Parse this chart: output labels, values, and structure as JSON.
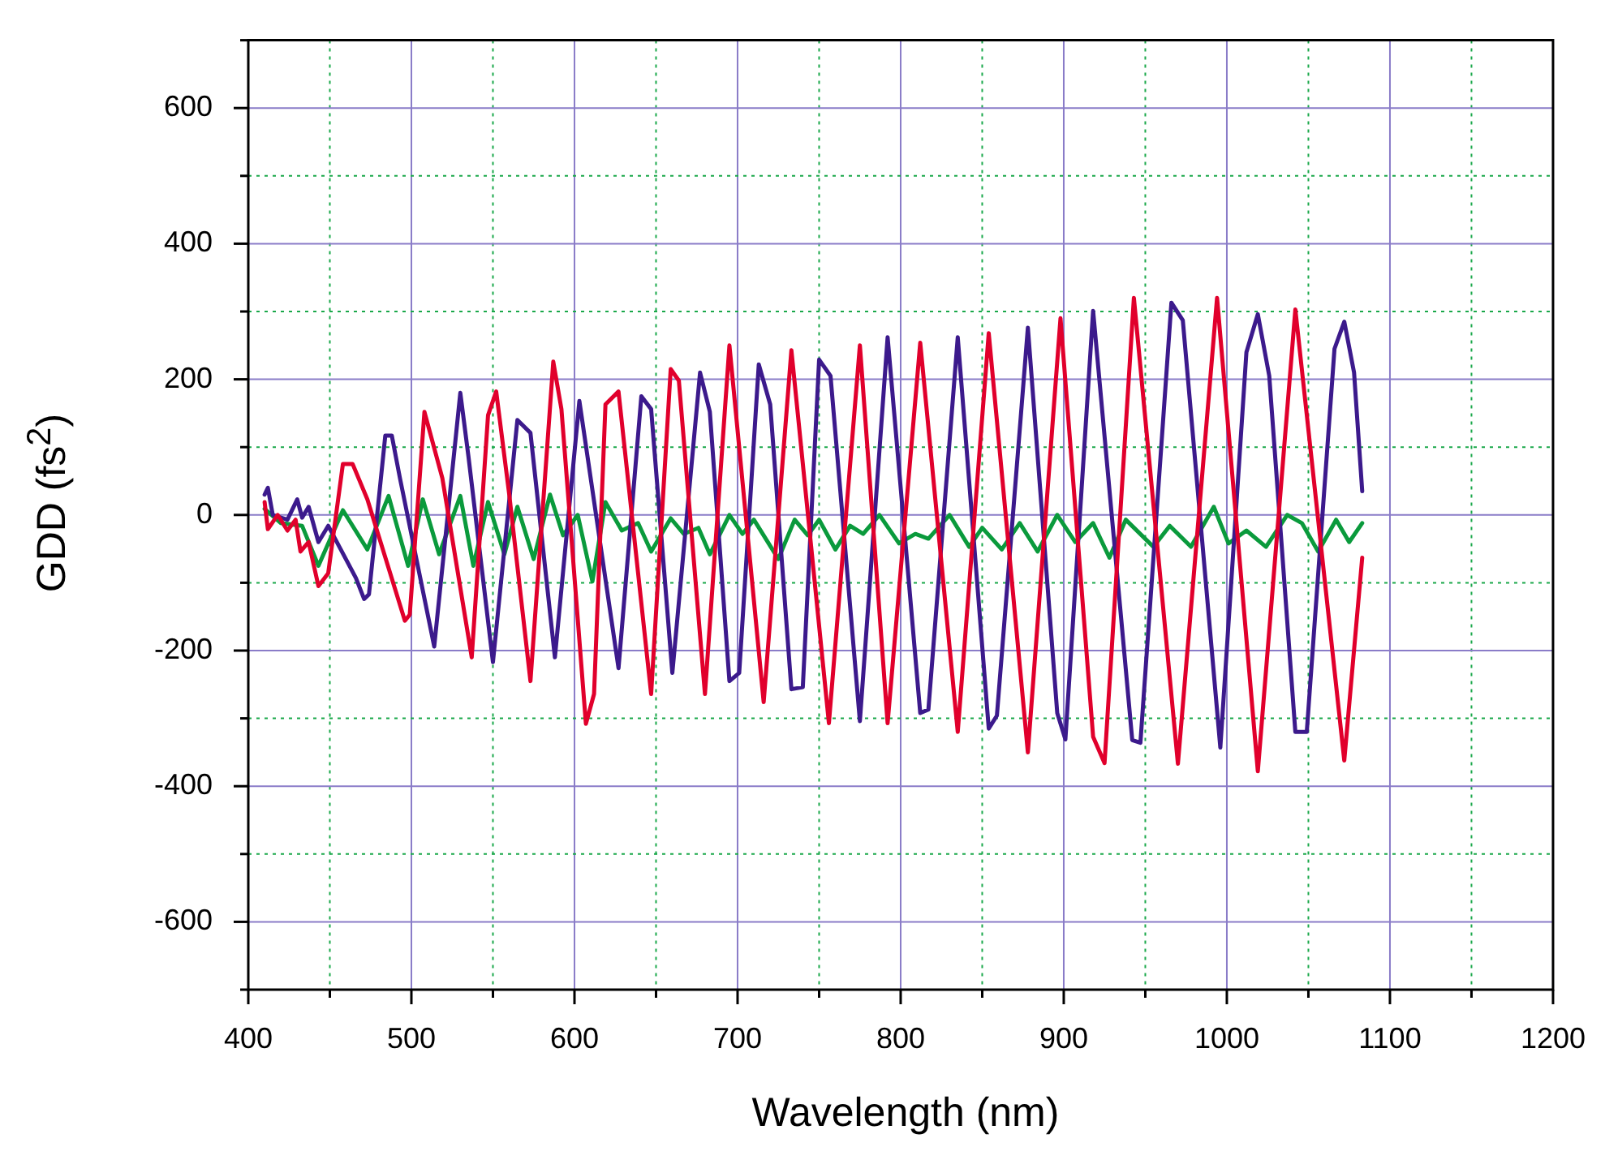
{
  "chart_data": {
    "type": "line",
    "xlabel": "Wavelength (nm)",
    "ylabel": "GDD (fs$^{2}$)",
    "xlim": [
      400,
      1200
    ],
    "ylim": [
      -700,
      700
    ],
    "xticks": [
      400,
      {
        "value": 450,
        "label": null
      },
      500,
      {
        "value": 550,
        "label": null
      },
      600,
      {
        "value": 650,
        "label": null
      },
      700,
      {
        "value": 750,
        "label": null
      },
      800,
      {
        "value": 850,
        "label": null
      },
      900,
      {
        "value": 950,
        "label": null
      },
      1000,
      {
        "value": 1050,
        "label": null
      },
      1100,
      {
        "value": 1150,
        "label": null
      },
      1200
    ],
    "yticks": [
      {
        "value": -700,
        "label": null
      },
      -600,
      {
        "value": -500,
        "label": null
      },
      -400,
      {
        "value": -300,
        "label": null
      },
      -200,
      {
        "value": -100,
        "label": null
      },
      0,
      {
        "value": 100,
        "label": null
      },
      200,
      {
        "value": 300,
        "label": null
      },
      400,
      {
        "value": 500,
        "label": null
      },
      600,
      {
        "value": 700,
        "label": null
      }
    ],
    "grid": true,
    "legend": false,
    "marker": "none",
    "line_style": "solid",
    "series": [
      {
        "color": "#e1002c",
        "x": [
          410,
          412,
          418,
          424,
          429,
          432,
          437,
          443,
          449,
          458,
          464,
          473,
          496,
          499,
          508,
          519,
          537,
          547,
          552,
          560,
          573,
          587,
          592,
          607,
          612,
          619,
          627,
          647,
          659,
          664,
          680,
          695,
          716,
          733,
          756,
          775,
          792,
          812,
          835,
          854,
          878,
          898,
          918,
          925,
          943,
          970,
          994,
          1019,
          1042,
          1072,
          1083
        ],
        "values": [
          19,
          -21,
          0,
          -23,
          -7,
          -54,
          -40,
          -105,
          -86,
          75,
          75,
          23,
          -156,
          -147,
          152,
          54,
          -210,
          147,
          182,
          30,
          -245,
          226,
          156,
          -308,
          -264,
          163,
          182,
          -264,
          215,
          198,
          -264,
          250,
          -276,
          243,
          -307,
          250,
          -307,
          254,
          -320,
          268,
          -350,
          290,
          -327,
          -366,
          320,
          -367,
          320,
          -378,
          303,
          -362,
          -63
        ]
      },
      {
        "color": "#3c1a8c",
        "x": [
          410,
          412,
          415,
          424,
          430,
          433,
          437,
          443,
          449,
          466,
          471,
          474,
          484,
          488,
          493,
          514,
          530,
          535,
          550,
          565,
          573,
          588,
          603,
          627,
          641,
          647,
          660,
          677,
          683,
          695,
          701,
          713,
          720,
          733,
          740,
          750,
          757,
          775,
          792,
          812,
          817,
          835,
          854,
          859,
          878,
          896,
          901,
          918,
          942,
          947,
          966,
          973,
          996,
          1012,
          1019,
          1026,
          1042,
          1049,
          1066,
          1072,
          1078,
          1083
        ],
        "values": [
          30,
          40,
          0,
          -7,
          23,
          -4,
          12,
          -40,
          -16,
          -93,
          -124,
          -117,
          117,
          117,
          54,
          -194,
          180,
          86,
          -217,
          140,
          121,
          -210,
          168,
          -226,
          175,
          156,
          -233,
          210,
          152,
          -245,
          -233,
          222,
          163,
          -257,
          -254,
          229,
          205,
          -304,
          262,
          -292,
          -287,
          262,
          -315,
          -296,
          276,
          -292,
          -331,
          301,
          -332,
          -336,
          313,
          287,
          -343,
          240,
          296,
          205,
          -320,
          -320,
          245,
          285,
          210,
          35
        ]
      },
      {
        "color": "#0a9a3c",
        "x": [
          410,
          420,
          433,
          443,
          458,
          473,
          486,
          498,
          507,
          517,
          530,
          538,
          547,
          557,
          565,
          575,
          585,
          593,
          602,
          611,
          619,
          629,
          639,
          647,
          659,
          667,
          676,
          683,
          695,
          703,
          710,
          725,
          735,
          743,
          750,
          760,
          769,
          777,
          787,
          799,
          809,
          817,
          830,
          842,
          850,
          862,
          873,
          884,
          896,
          907,
          918,
          928,
          938,
          955,
          965,
          978,
          992,
          1001,
          1012,
          1024,
          1037,
          1046,
          1056,
          1067,
          1075,
          1083
        ],
        "values": [
          9,
          -12,
          -16,
          -75,
          7,
          -51,
          28,
          -75,
          23,
          -58,
          28,
          -75,
          19,
          -58,
          12,
          -65,
          30,
          -30,
          0,
          -98,
          19,
          -23,
          -12,
          -54,
          -5,
          -28,
          -19,
          -58,
          0,
          -28,
          -7,
          -65,
          -7,
          -30,
          -7,
          -51,
          -16,
          -28,
          0,
          -42,
          -28,
          -35,
          0,
          -47,
          -19,
          -51,
          -12,
          -54,
          0,
          -40,
          -12,
          -63,
          -7,
          -47,
          -16,
          -47,
          12,
          -42,
          -23,
          -47,
          0,
          -12,
          -54,
          -7,
          -40,
          -12
        ]
      }
    ]
  }
}
